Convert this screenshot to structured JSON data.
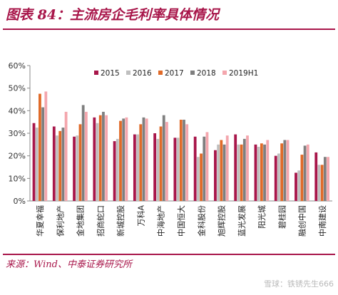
{
  "header": {
    "title": "图表 84：主流房企毛利率具体情况"
  },
  "footer": {
    "source": "来源：Wind、中泰证券研究所",
    "watermark": "雪球：铁锈先生666"
  },
  "colors": {
    "accent": "#a8164a",
    "series": [
      "#a8164a",
      "#bfbfbf",
      "#e06a28",
      "#7f7f7f",
      "#f4a6ad"
    ]
  },
  "chart_data": {
    "type": "bar",
    "title": "",
    "xlabel": "",
    "ylabel": "",
    "ylim": [
      0,
      60
    ],
    "yticks": [
      "0%",
      "10%",
      "20%",
      "30%",
      "40%",
      "50%",
      "60%"
    ],
    "grid": false,
    "legend_position": "top-right",
    "categories": [
      "华夏幸福",
      "保利地产",
      "金地集团",
      "招商蛇口",
      "新城控股",
      "万科A",
      "中海地产",
      "中国恒大",
      "金科股份",
      "旭辉控股",
      "蓝光发展",
      "阳光城",
      "碧桂园",
      "融创中国",
      "中南建设"
    ],
    "series": [
      {
        "name": "2015",
        "values": [
          34.5,
          33.0,
          28.5,
          37.0,
          26.5,
          29.5,
          30.0,
          28.0,
          28.5,
          22.5,
          29.5,
          25.0,
          20.0,
          12.5,
          21.5
        ]
      },
      {
        "name": "2016",
        "values": [
          32.5,
          29.0,
          29.0,
          34.5,
          27.5,
          29.5,
          27.5,
          28.0,
          19.5,
          25.0,
          25.0,
          24.0,
          21.0,
          13.5,
          16.0
        ]
      },
      {
        "name": "2017",
        "values": [
          47.5,
          31.0,
          34.0,
          38.0,
          35.5,
          34.0,
          33.0,
          36.0,
          21.0,
          27.0,
          25.0,
          25.5,
          25.5,
          20.5,
          16.0
        ]
      },
      {
        "name": "2018",
        "values": [
          41.5,
          32.5,
          42.5,
          39.5,
          36.5,
          37.0,
          38.0,
          36.0,
          28.5,
          25.0,
          27.5,
          25.0,
          27.0,
          24.5,
          19.5
        ]
      },
      {
        "name": "2019H1",
        "values": [
          48.5,
          39.5,
          39.5,
          38.0,
          37.0,
          36.5,
          35.0,
          34.0,
          30.5,
          29.0,
          29.0,
          27.0,
          27.0,
          25.0,
          19.5
        ]
      }
    ]
  }
}
